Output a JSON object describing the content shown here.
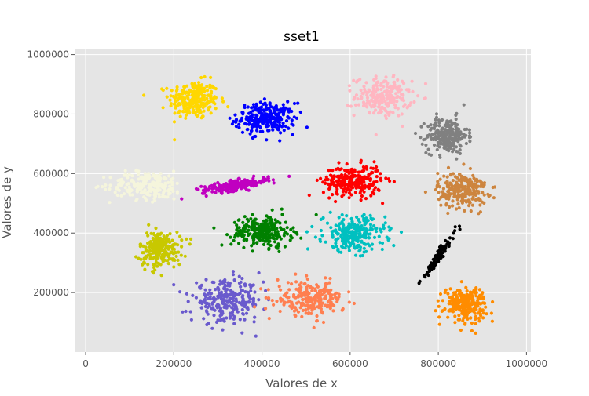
{
  "chart_data": {
    "type": "scatter",
    "title": "sset1",
    "xlabel": "Valores de x",
    "ylabel": "Valores de y",
    "xlim": [
      -25000,
      1010000
    ],
    "ylim": [
      0,
      1020000
    ],
    "xticks": [
      0,
      200000,
      400000,
      600000,
      800000,
      1000000
    ],
    "yticks": [
      200000,
      400000,
      600000,
      800000,
      1000000
    ],
    "grid": true,
    "background": "#e5e5e5",
    "clusters": [
      {
        "color": "#ffd700",
        "center": [
          245000,
          848000
        ],
        "spread": [
          28000,
          32000
        ],
        "count": 260
      },
      {
        "color": "#0000ff",
        "center": [
          410000,
          785000
        ],
        "spread": [
          33000,
          26000
        ],
        "count": 260
      },
      {
        "color": "#ffb6c1",
        "center": [
          675000,
          858000
        ],
        "spread": [
          32000,
          33000
        ],
        "count": 220
      },
      {
        "color": "#808080",
        "center": [
          820000,
          728000
        ],
        "spread": [
          23000,
          30000
        ],
        "count": 240
      },
      {
        "color": "#f5f5dc",
        "center": [
          140000,
          560000
        ],
        "spread": [
          42000,
          24000
        ],
        "count": 220
      },
      {
        "color": "#c000c0",
        "center": [
          340000,
          560000
        ],
        "spread": [
          38000,
          12000
        ],
        "count": 220,
        "corr": 0.7
      },
      {
        "color": "#ff0000",
        "center": [
          605000,
          575000
        ],
        "spread": [
          33000,
          26000
        ],
        "count": 260
      },
      {
        "color": "#cd853f",
        "center": [
          855000,
          545000
        ],
        "spread": [
          28000,
          30000
        ],
        "count": 240
      },
      {
        "color": "#c8c800",
        "center": [
          170000,
          345000
        ],
        "spread": [
          24000,
          30000
        ],
        "count": 220
      },
      {
        "color": "#008000",
        "center": [
          400000,
          405000
        ],
        "spread": [
          34000,
          26000
        ],
        "count": 260
      },
      {
        "color": "#00c0c0",
        "center": [
          610000,
          398000
        ],
        "spread": [
          35000,
          30000
        ],
        "count": 260
      },
      {
        "color": "#000000",
        "center": [
          800000,
          320000
        ],
        "spread": [
          20000,
          42000
        ],
        "count": 110,
        "corr": 0.97
      },
      {
        "color": "#6a5acd",
        "center": [
          320000,
          170000
        ],
        "spread": [
          40000,
          34000
        ],
        "count": 260
      },
      {
        "color": "#ff7f50",
        "center": [
          510000,
          178000
        ],
        "spread": [
          38000,
          28000
        ],
        "count": 240
      },
      {
        "color": "#ff8c00",
        "center": [
          860000,
          162000
        ],
        "spread": [
          24000,
          28000
        ],
        "count": 240
      }
    ]
  }
}
